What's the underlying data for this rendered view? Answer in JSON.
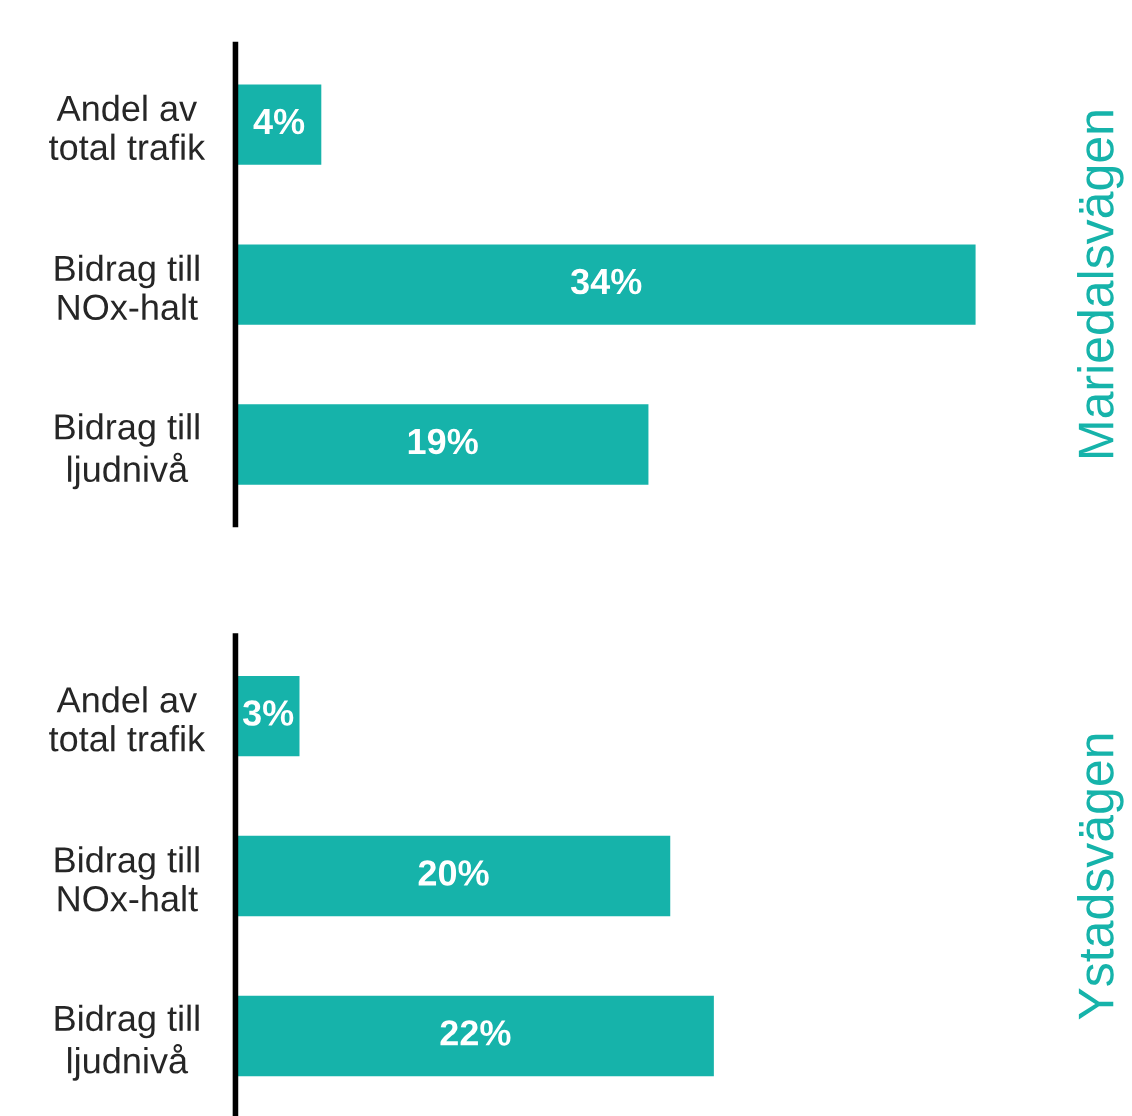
{
  "chart_data": [
    {
      "type": "bar",
      "orientation": "horizontal",
      "ylabel": "Mariedalsvägen",
      "categories": [
        "Andel av\ntotal trafik",
        "Bidrag till\nNOx-halt",
        "Bidrag till\nljudnivå"
      ],
      "values": [
        4,
        34,
        19
      ],
      "value_labels": [
        "4%",
        "34%",
        "19%"
      ],
      "color": "#16b3aa",
      "tick_labels": "y"
    },
    {
      "type": "bar",
      "orientation": "horizontal",
      "ylabel": "Ystadsvägen",
      "categories": [
        "Andel av\ntotal trafik",
        "Bidrag till\nNOx-halt",
        "Bidrag till\nljudnivå"
      ],
      "values": [
        3,
        20,
        22
      ],
      "value_labels": [
        "3%",
        "20%",
        "22%"
      ],
      "color": "#16b3aa",
      "tick_labels": "y"
    }
  ]
}
